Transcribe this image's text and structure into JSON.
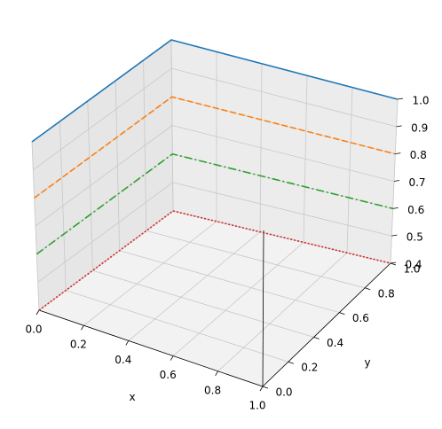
{
  "chart_data": {
    "type": "line",
    "projection": "3d",
    "xlabel": "x",
    "ylabel": "y",
    "zlabel": "",
    "xlim": [
      0.0,
      1.0
    ],
    "ylim": [
      0.0,
      1.0
    ],
    "zlim": [
      0.4,
      1.0
    ],
    "x_ticks": [
      "0.0",
      "0.2",
      "0.4",
      "0.6",
      "0.8",
      "1.0"
    ],
    "y_ticks": [
      "0.0",
      "0.2",
      "0.4",
      "0.6",
      "0.8",
      "1.0"
    ],
    "z_ticks": [
      "0.4",
      "0.5",
      "0.6",
      "0.7",
      "0.8",
      "0.9",
      "1.0"
    ],
    "grid": true,
    "legend": "none",
    "series": [
      {
        "color": "#1f77b4",
        "linestyle": "solid",
        "points": [
          [
            0,
            0,
            1.0
          ],
          [
            0,
            1,
            1.0
          ],
          [
            1,
            1,
            1.0
          ]
        ]
      },
      {
        "color": "#ff7f0e",
        "linestyle": "dashed",
        "points": [
          [
            0,
            0,
            0.8
          ],
          [
            0,
            1,
            0.8
          ],
          [
            1,
            1,
            0.8
          ]
        ]
      },
      {
        "color": "#2ca02c",
        "linestyle": "dashdot",
        "points": [
          [
            0,
            0,
            0.6
          ],
          [
            0,
            1,
            0.6
          ],
          [
            1,
            1,
            0.6
          ]
        ]
      },
      {
        "color": "#d62728",
        "linestyle": "dotted",
        "points": [
          [
            0,
            0,
            0.4
          ],
          [
            0,
            1,
            0.4
          ],
          [
            1,
            1,
            0.4
          ]
        ]
      }
    ]
  }
}
